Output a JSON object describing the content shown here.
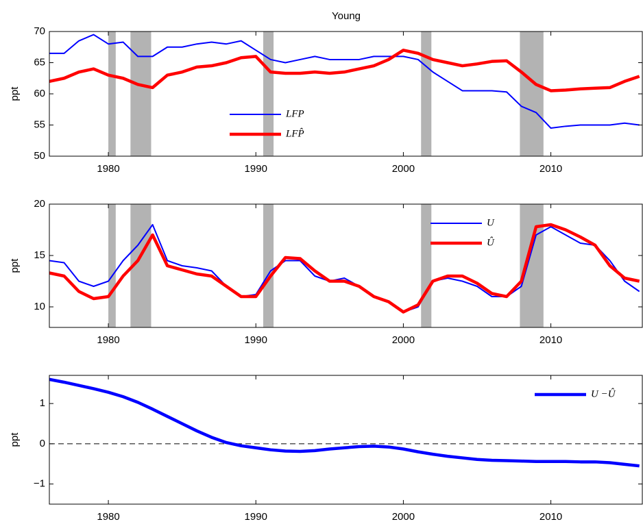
{
  "chart_data": [
    {
      "type": "line",
      "title": "Young",
      "ylabel": "ppt",
      "legend": "center",
      "x": [
        1976,
        1977,
        1978,
        1979,
        1980,
        1981,
        1982,
        1983,
        1984,
        1985,
        1986,
        1987,
        1988,
        1989,
        1990,
        1991,
        1992,
        1993,
        1994,
        1995,
        1996,
        1997,
        1998,
        1999,
        2000,
        2001,
        2002,
        2003,
        2004,
        2005,
        2006,
        2007,
        2008,
        2009,
        2010,
        2011,
        2012,
        2013,
        2014,
        2015,
        2016
      ],
      "series": [
        {
          "name": "LFP",
          "color": "#0000ff",
          "width": 2,
          "values": [
            66.5,
            66.5,
            68.5,
            69.5,
            68,
            68.3,
            66,
            66,
            67.5,
            67.5,
            68,
            68.3,
            68,
            68.5,
            67,
            65.5,
            65,
            65.5,
            66,
            65.5,
            65.5,
            65.5,
            66,
            66,
            66,
            65.5,
            63.5,
            62,
            60.5,
            60.5,
            60.5,
            60.3,
            58,
            57,
            54.5,
            54.8,
            55,
            55,
            55,
            55.3,
            55
          ]
        },
        {
          "name": "LFP̂",
          "color": "#ff0000",
          "width": 4.5,
          "values": [
            62,
            62.5,
            63.5,
            64,
            63,
            62.5,
            61.5,
            61,
            63,
            63.5,
            64.3,
            64.5,
            65,
            65.8,
            66,
            63.5,
            63.3,
            63.3,
            63.5,
            63.3,
            63.5,
            64,
            64.5,
            65.5,
            67,
            66.5,
            65.5,
            65,
            64.5,
            64.8,
            65.2,
            65.3,
            63.5,
            61.5,
            60.5,
            60.6,
            60.8,
            60.9,
            61,
            62,
            62.8
          ]
        }
      ],
      "recessions": [
        [
          1980,
          1980.5
        ],
        [
          1981.5,
          1982.9
        ],
        [
          1990.5,
          1991.2
        ],
        [
          2001.2,
          2001.9
        ],
        [
          2007.9,
          2009.5
        ]
      ],
      "recession_color": "#b3b3b3",
      "xlim": [
        1976,
        2016.2
      ],
      "xticks": [
        1980,
        1990,
        2000,
        2010
      ],
      "ylim": [
        50,
        70
      ],
      "yticks": [
        50,
        55,
        60,
        65,
        70
      ]
    },
    {
      "type": "line",
      "ylabel": "ppt",
      "legend": "upper right",
      "x": [
        1976,
        1977,
        1978,
        1979,
        1980,
        1981,
        1982,
        1983,
        1984,
        1985,
        1986,
        1987,
        1988,
        1989,
        1990,
        1991,
        1992,
        1993,
        1994,
        1995,
        1996,
        1997,
        1998,
        1999,
        2000,
        2001,
        2002,
        2003,
        2004,
        2005,
        2006,
        2007,
        2008,
        2009,
        2010,
        2011,
        2012,
        2013,
        2014,
        2015,
        2016
      ],
      "series": [
        {
          "name": "U",
          "color": "#0000ff",
          "width": 2,
          "values": [
            14.5,
            14.3,
            12.5,
            12,
            12.5,
            14.5,
            16,
            18,
            14.5,
            14,
            13.8,
            13.5,
            12,
            11,
            11.2,
            13.5,
            14.5,
            14.5,
            13,
            12.5,
            12.8,
            12,
            11,
            10.5,
            9.5,
            10,
            12.5,
            12.8,
            12.5,
            12,
            11,
            11,
            12,
            17,
            17.8,
            17,
            16.2,
            16,
            14.5,
            12.5,
            11.5
          ]
        },
        {
          "name": "Û",
          "color": "#ff0000",
          "width": 4.5,
          "values": [
            13.3,
            13,
            11.5,
            10.8,
            11,
            13,
            14.5,
            17,
            14,
            13.6,
            13.2,
            13,
            12,
            11,
            11,
            13,
            14.8,
            14.7,
            13.5,
            12.5,
            12.5,
            12,
            11,
            10.5,
            9.5,
            10.2,
            12.5,
            13,
            13,
            12.3,
            11.3,
            11,
            12.5,
            17.8,
            18,
            17.5,
            16.8,
            16,
            14,
            12.8,
            12.5
          ]
        }
      ],
      "recessions": [
        [
          1980,
          1980.5
        ],
        [
          1981.5,
          1982.9
        ],
        [
          1990.5,
          1991.2
        ],
        [
          2001.2,
          2001.9
        ],
        [
          2007.9,
          2009.5
        ]
      ],
      "recession_color": "#b3b3b3",
      "xlim": [
        1976,
        2016.2
      ],
      "xticks": [
        1980,
        1990,
        2000,
        2010
      ],
      "ylim": [
        8,
        20
      ],
      "yticks": [
        10,
        15,
        20
      ]
    },
    {
      "type": "line",
      "ylabel": "ppt",
      "legend": "upper right",
      "zero_line": true,
      "x": [
        1976,
        1977,
        1978,
        1979,
        1980,
        1981,
        1982,
        1983,
        1984,
        1985,
        1986,
        1987,
        1988,
        1989,
        1990,
        1991,
        1992,
        1993,
        1994,
        1995,
        1996,
        1997,
        1998,
        1999,
        2000,
        2001,
        2002,
        2003,
        2004,
        2005,
        2006,
        2007,
        2008,
        2009,
        2010,
        2011,
        2012,
        2013,
        2014,
        2015,
        2016
      ],
      "series": [
        {
          "name": "U −Û",
          "color": "#0000ff",
          "width": 4.5,
          "values": [
            1.6,
            1.53,
            1.45,
            1.37,
            1.28,
            1.17,
            1.03,
            0.86,
            0.68,
            0.5,
            0.32,
            0.16,
            0.03,
            -0.05,
            -0.1,
            -0.15,
            -0.18,
            -0.19,
            -0.17,
            -0.13,
            -0.1,
            -0.07,
            -0.06,
            -0.08,
            -0.13,
            -0.2,
            -0.26,
            -0.31,
            -0.35,
            -0.39,
            -0.41,
            -0.42,
            -0.43,
            -0.44,
            -0.44,
            -0.44,
            -0.45,
            -0.45,
            -0.47,
            -0.51,
            -0.55
          ]
        }
      ],
      "xlim": [
        1976,
        2016.2
      ],
      "xticks": [
        1980,
        1990,
        2000,
        2010
      ],
      "ylim": [
        -1.5,
        1.7
      ],
      "yticks": [
        {
          "value": -1,
          "label": "−1"
        },
        0,
        1
      ]
    }
  ]
}
